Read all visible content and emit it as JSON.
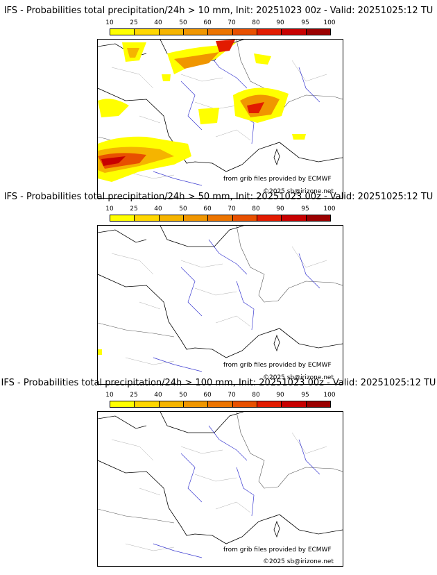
{
  "colorbar": {
    "ticks": [
      "10",
      "25",
      "40",
      "50",
      "60",
      "70",
      "80",
      "90",
      "95",
      "100"
    ],
    "colors": [
      "#ffff00",
      "#ffd700",
      "#f5b400",
      "#f09600",
      "#ec7400",
      "#e85000",
      "#e21b00",
      "#c80000",
      "#9b0000",
      "#6b0000"
    ]
  },
  "panels": [
    {
      "title": "IFS - Probabilities total precipitation/24h > 10 mm, Init: 20251023 00z - Valid: 20251025:12 TU",
      "source": "from grib files provided by ECMWF",
      "copyright": "©2025 sb@irizone.net"
    },
    {
      "title": "IFS - Probabilities total precipitation/24h > 50 mm, Init: 20251023 00z - Valid: 20251025:12 TU",
      "source": "from grib files provided by ECMWF",
      "copyright": "©2025 sb@irizone.net"
    },
    {
      "title": "IFS - Probabilities total precipitation/24h > 100 mm, Init: 20251023 00z - Valid: 20251025:12 TU",
      "source": "from grib files provided by ECMWF",
      "copyright": "©2025 sb@irizone.net"
    }
  ]
}
